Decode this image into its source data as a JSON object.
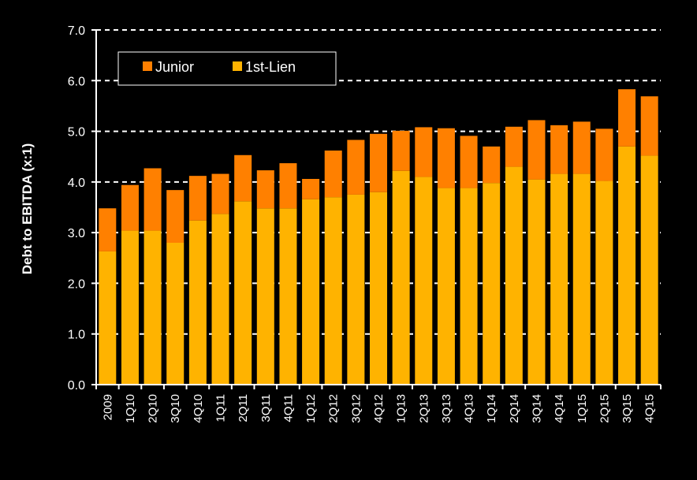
{
  "chart_data": {
    "type": "bar",
    "stacked": true,
    "ylabel": "Debt to EBITDA (x:1)",
    "ylim": [
      0,
      7
    ],
    "yticks": [
      "0.0",
      "1.0",
      "2.0",
      "3.0",
      "4.0",
      "5.0",
      "6.0",
      "7.0"
    ],
    "grid": "dashed horizontal",
    "legend_position": "top-left",
    "categories": [
      "2009",
      "1Q10",
      "2Q10",
      "3Q10",
      "4Q10",
      "1Q11",
      "2Q11",
      "3Q11",
      "4Q11",
      "1Q12",
      "2Q12",
      "3Q12",
      "4Q12",
      "1Q13",
      "2Q13",
      "3Q13",
      "4Q13",
      "1Q14",
      "2Q14",
      "3Q14",
      "4Q14",
      "1Q15",
      "2Q15",
      "3Q15",
      "4Q15"
    ],
    "series": [
      {
        "name": "1st-Lien",
        "color": "#FFB300",
        "values": [
          2.63,
          3.04,
          3.04,
          2.8,
          3.24,
          3.37,
          3.62,
          3.48,
          3.48,
          3.66,
          3.7,
          3.75,
          3.8,
          4.22,
          4.1,
          3.88,
          3.88,
          3.98,
          4.3,
          4.05,
          4.16,
          4.16,
          4.02,
          4.7,
          4.52
        ]
      },
      {
        "name": "Junior",
        "color": "#FF8000",
        "values": [
          0.85,
          0.9,
          1.23,
          1.04,
          0.88,
          0.79,
          0.91,
          0.75,
          0.89,
          0.4,
          0.92,
          1.08,
          1.15,
          0.79,
          0.98,
          1.18,
          1.03,
          0.72,
          0.79,
          1.17,
          0.96,
          1.03,
          1.03,
          1.13,
          1.17
        ]
      }
    ]
  }
}
